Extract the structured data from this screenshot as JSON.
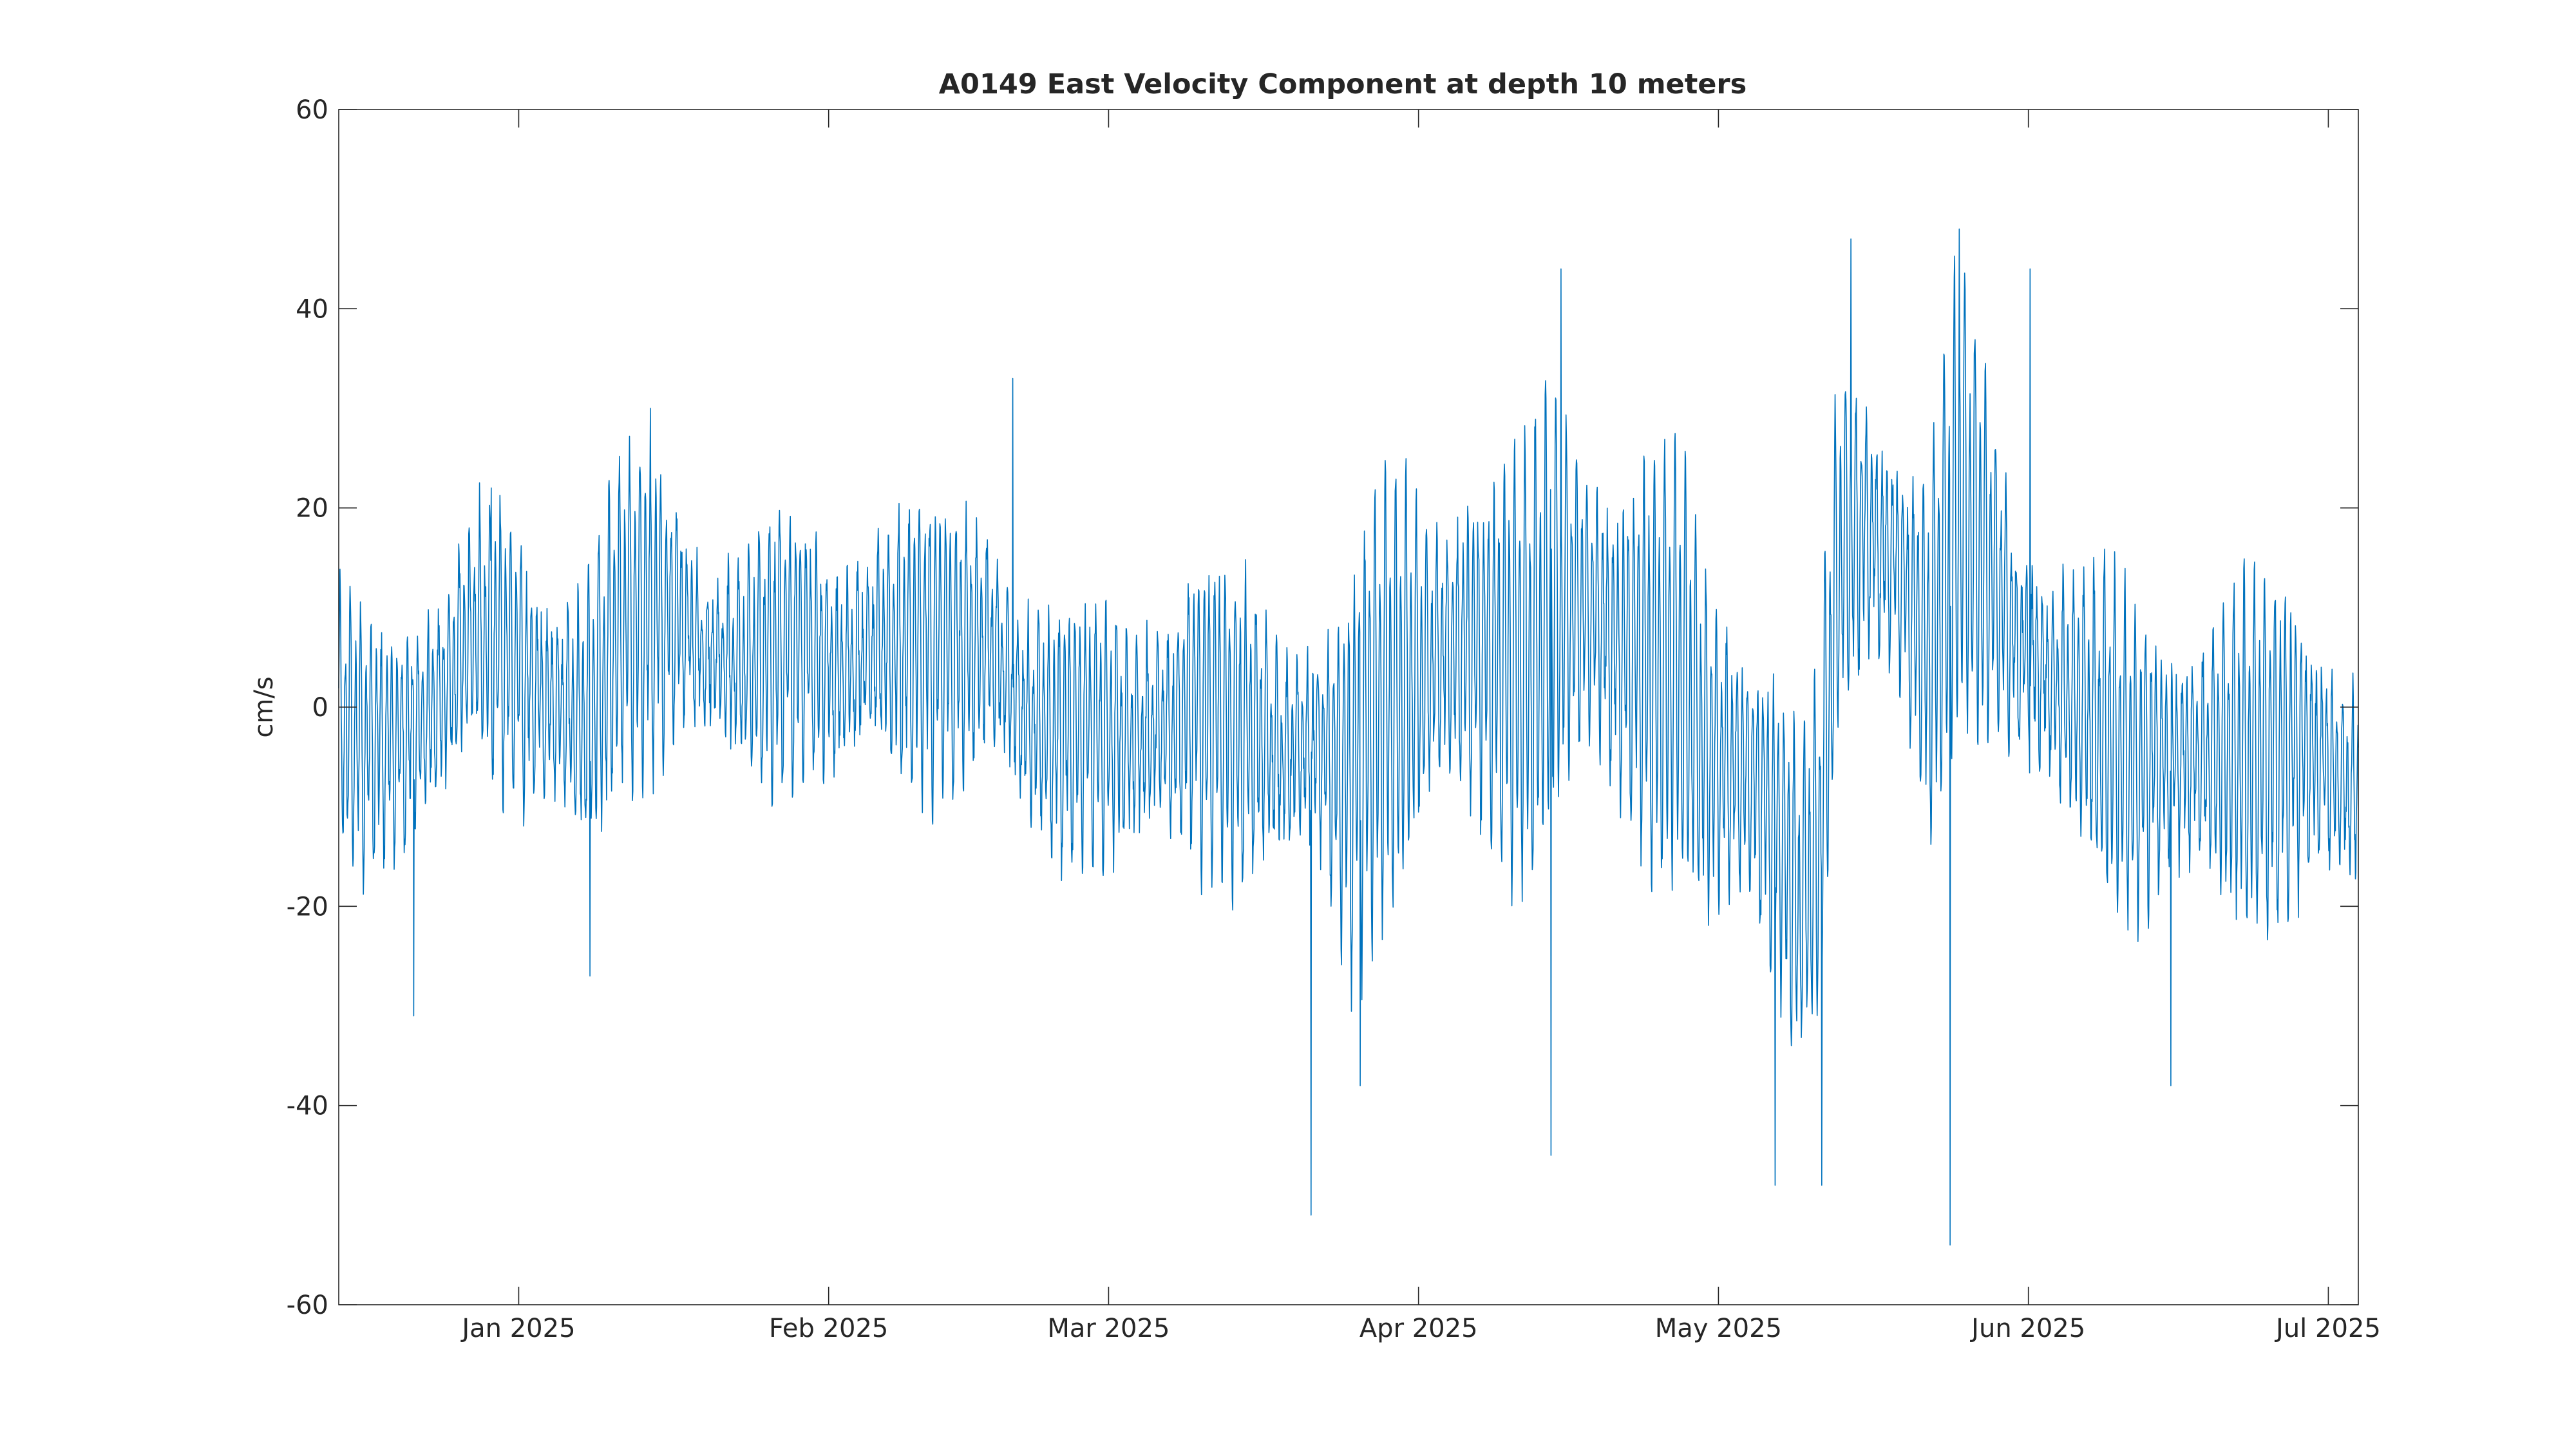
{
  "chart_data": {
    "type": "line",
    "title": "A0149 East Velocity Component at depth 10 meters",
    "xlabel": "",
    "ylabel": "cm/s",
    "x_range": [
      "2024-12-14",
      "2025-07-04"
    ],
    "x_type": "date",
    "ylim": [
      -60,
      60
    ],
    "y_ticks": [
      -60,
      -40,
      -20,
      0,
      20,
      40,
      60
    ],
    "x_ticks": [
      {
        "date": "2025-01-01",
        "label": "Jan 2025"
      },
      {
        "date": "2025-02-01",
        "label": "Feb 2025"
      },
      {
        "date": "2025-03-01",
        "label": "Mar 2025"
      },
      {
        "date": "2025-04-01",
        "label": "Apr 2025"
      },
      {
        "date": "2025-05-01",
        "label": "May 2025"
      },
      {
        "date": "2025-06-01",
        "label": "Jun 2025"
      },
      {
        "date": "2025-07-01",
        "label": "Jul 2025"
      }
    ],
    "grid": false,
    "line_color": "#0072bd",
    "sampling_hours": 1,
    "series": [
      {
        "tidal_period_hours": 12.42,
        "daily_envelope": [
          {
            "date": "2024-12-14",
            "mean": -2,
            "amplitude": 10
          },
          {
            "date": "2024-12-18",
            "mean": -4,
            "amplitude": 13
          },
          {
            "date": "2024-12-21",
            "mean": -3,
            "amplitude": 16
          },
          {
            "date": "2024-12-24",
            "mean": 0,
            "amplitude": 11
          },
          {
            "date": "2024-12-27",
            "mean": 7,
            "amplitude": 9
          },
          {
            "date": "2024-12-30",
            "mean": 7,
            "amplitude": 12
          },
          {
            "date": "2025-01-02",
            "mean": 2,
            "amplitude": 14
          },
          {
            "date": "2025-01-05",
            "mean": 0,
            "amplitude": 14
          },
          {
            "date": "2025-01-08",
            "mean": -2,
            "amplitude": 17
          },
          {
            "date": "2025-01-11",
            "mean": 8,
            "amplitude": 13
          },
          {
            "date": "2025-01-14",
            "mean": 10,
            "amplitude": 14
          },
          {
            "date": "2025-01-17",
            "mean": 9,
            "amplitude": 12
          },
          {
            "date": "2025-01-20",
            "mean": 5,
            "amplitude": 11
          },
          {
            "date": "2025-01-24",
            "mean": 4,
            "amplitude": 11
          },
          {
            "date": "2025-01-27",
            "mean": 6,
            "amplitude": 11
          },
          {
            "date": "2025-01-30",
            "mean": 6,
            "amplitude": 11
          },
          {
            "date": "2025-02-02",
            "mean": 3,
            "amplitude": 13
          },
          {
            "date": "2025-02-05",
            "mean": 6,
            "amplitude": 12
          },
          {
            "date": "2025-02-08",
            "mean": 6,
            "amplitude": 13
          },
          {
            "date": "2025-02-11",
            "mean": 6,
            "amplitude": 12
          },
          {
            "date": "2025-02-14",
            "mean": 6,
            "amplitude": 13
          },
          {
            "date": "2025-02-17",
            "mean": 7,
            "amplitude": 14
          },
          {
            "date": "2025-02-20",
            "mean": 0,
            "amplitude": 12
          },
          {
            "date": "2025-02-23",
            "mean": -3,
            "amplitude": 11
          },
          {
            "date": "2025-02-26",
            "mean": -2,
            "amplitude": 10
          },
          {
            "date": "2025-03-01",
            "mean": -3,
            "amplitude": 12
          },
          {
            "date": "2025-03-04",
            "mean": -3,
            "amplitude": 14
          },
          {
            "date": "2025-03-07",
            "mean": -2,
            "amplitude": 13
          },
          {
            "date": "2025-03-10",
            "mean": 0,
            "amplitude": 14
          },
          {
            "date": "2025-03-13",
            "mean": -2,
            "amplitude": 13
          },
          {
            "date": "2025-03-16",
            "mean": -3,
            "amplitude": 13
          },
          {
            "date": "2025-03-19",
            "mean": -5,
            "amplitude": 12
          },
          {
            "date": "2025-03-22",
            "mean": -4,
            "amplitude": 13
          },
          {
            "date": "2025-03-25",
            "mean": -8,
            "amplitude": 17
          },
          {
            "date": "2025-03-28",
            "mean": 0,
            "amplitude": 18
          },
          {
            "date": "2025-03-31",
            "mean": 2,
            "amplitude": 20
          },
          {
            "date": "2025-04-03",
            "mean": 5,
            "amplitude": 18
          },
          {
            "date": "2025-04-06",
            "mean": 6,
            "amplitude": 18
          },
          {
            "date": "2025-04-09",
            "mean": 4,
            "amplitude": 17
          },
          {
            "date": "2025-04-12",
            "mean": 4,
            "amplitude": 19
          },
          {
            "date": "2025-04-15",
            "mean": 10,
            "amplitude": 22
          },
          {
            "date": "2025-04-18",
            "mean": 10,
            "amplitude": 21
          },
          {
            "date": "2025-04-21",
            "mean": 6,
            "amplitude": 18
          },
          {
            "date": "2025-04-24",
            "mean": 4,
            "amplitude": 18
          },
          {
            "date": "2025-04-27",
            "mean": 4,
            "amplitude": 18
          },
          {
            "date": "2025-04-30",
            "mean": -5,
            "amplitude": 18
          },
          {
            "date": "2025-05-03",
            "mean": -6,
            "amplitude": 18
          },
          {
            "date": "2025-05-06",
            "mean": -10,
            "amplitude": 17
          },
          {
            "date": "2025-05-09",
            "mean": -20,
            "amplitude": 13
          },
          {
            "date": "2025-05-11",
            "mean": -15,
            "amplitude": 14
          },
          {
            "date": "2025-05-13",
            "mean": 15,
            "amplitude": 16
          },
          {
            "date": "2025-05-16",
            "mean": 18,
            "amplitude": 16
          },
          {
            "date": "2025-05-19",
            "mean": 14,
            "amplitude": 15
          },
          {
            "date": "2025-05-22",
            "mean": 5,
            "amplitude": 20
          },
          {
            "date": "2025-05-25",
            "mean": 20,
            "amplitude": 20
          },
          {
            "date": "2025-05-28",
            "mean": 14,
            "amplitude": 16
          },
          {
            "date": "2025-05-31",
            "mean": 6,
            "amplitude": 14
          },
          {
            "date": "2025-06-03",
            "mean": 3,
            "amplitude": 14
          },
          {
            "date": "2025-06-06",
            "mean": 0,
            "amplitude": 12
          },
          {
            "date": "2025-06-09",
            "mean": -3,
            "amplitude": 13
          },
          {
            "date": "2025-06-12",
            "mean": -6,
            "amplitude": 14
          },
          {
            "date": "2025-06-15",
            "mean": -5,
            "amplitude": 15
          },
          {
            "date": "2025-06-18",
            "mean": -5,
            "amplitude": 14
          },
          {
            "date": "2025-06-21",
            "mean": -5,
            "amplitude": 15
          },
          {
            "date": "2025-06-24",
            "mean": -5,
            "amplitude": 14
          },
          {
            "date": "2025-06-27",
            "mean": -4,
            "amplitude": 15
          },
          {
            "date": "2025-06-30",
            "mean": -5,
            "amplitude": 15
          },
          {
            "date": "2025-07-04",
            "mean": -9,
            "amplitude": 12
          }
        ],
        "extremes": [
          {
            "date": "2024-12-21T12:00",
            "value": -31
          },
          {
            "date": "2024-12-29T06:00",
            "value": 22
          },
          {
            "date": "2025-01-14T04:00",
            "value": 30
          },
          {
            "date": "2025-01-08T03:00",
            "value": -27
          },
          {
            "date": "2025-02-19T10:00",
            "value": 33
          },
          {
            "date": "2025-03-21T06:00",
            "value": -51
          },
          {
            "date": "2025-03-26T04:00",
            "value": -38
          },
          {
            "date": "2025-04-15T06:00",
            "value": 44
          },
          {
            "date": "2025-04-14T06:00",
            "value": -45
          },
          {
            "date": "2025-05-06T16:00",
            "value": -48
          },
          {
            "date": "2025-05-11T08:00",
            "value": -48
          },
          {
            "date": "2025-05-14T06:00",
            "value": 47
          },
          {
            "date": "2025-05-24T04:00",
            "value": -54
          },
          {
            "date": "2025-05-25T02:00",
            "value": 48
          },
          {
            "date": "2025-06-01T04:00",
            "value": 44
          },
          {
            "date": "2025-06-15T06:00",
            "value": -38
          }
        ]
      }
    ]
  }
}
